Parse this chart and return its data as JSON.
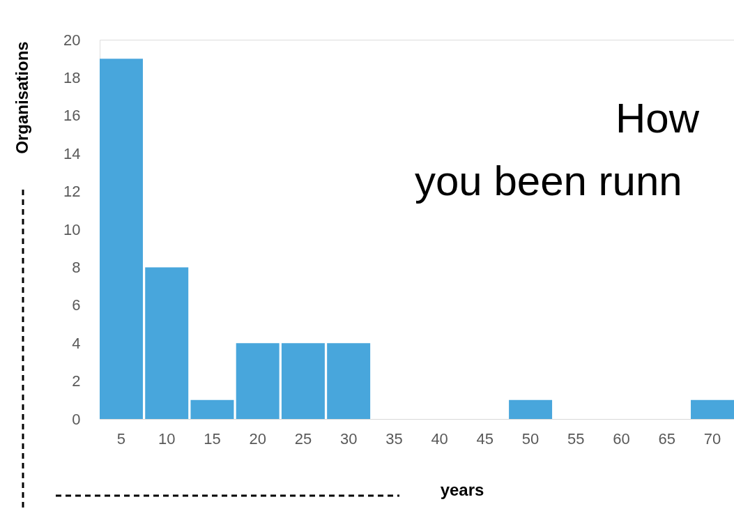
{
  "chart_data": {
    "type": "bar",
    "categories": [
      "5",
      "10",
      "15",
      "20",
      "25",
      "30",
      "35",
      "40",
      "45",
      "50",
      "55",
      "60",
      "65",
      "70"
    ],
    "values": [
      19,
      8,
      1,
      4,
      4,
      4,
      0,
      0,
      0,
      1,
      0,
      0,
      0,
      1
    ],
    "color": "#48a6dc",
    "ylim": [
      0,
      20
    ],
    "yticks": [
      0,
      2,
      4,
      6,
      8,
      10,
      12,
      14,
      16,
      18,
      20
    ],
    "xlabel": "years",
    "ylabel": "Organisations",
    "annotations": [
      "How",
      "you been runn"
    ],
    "grid": false
  }
}
